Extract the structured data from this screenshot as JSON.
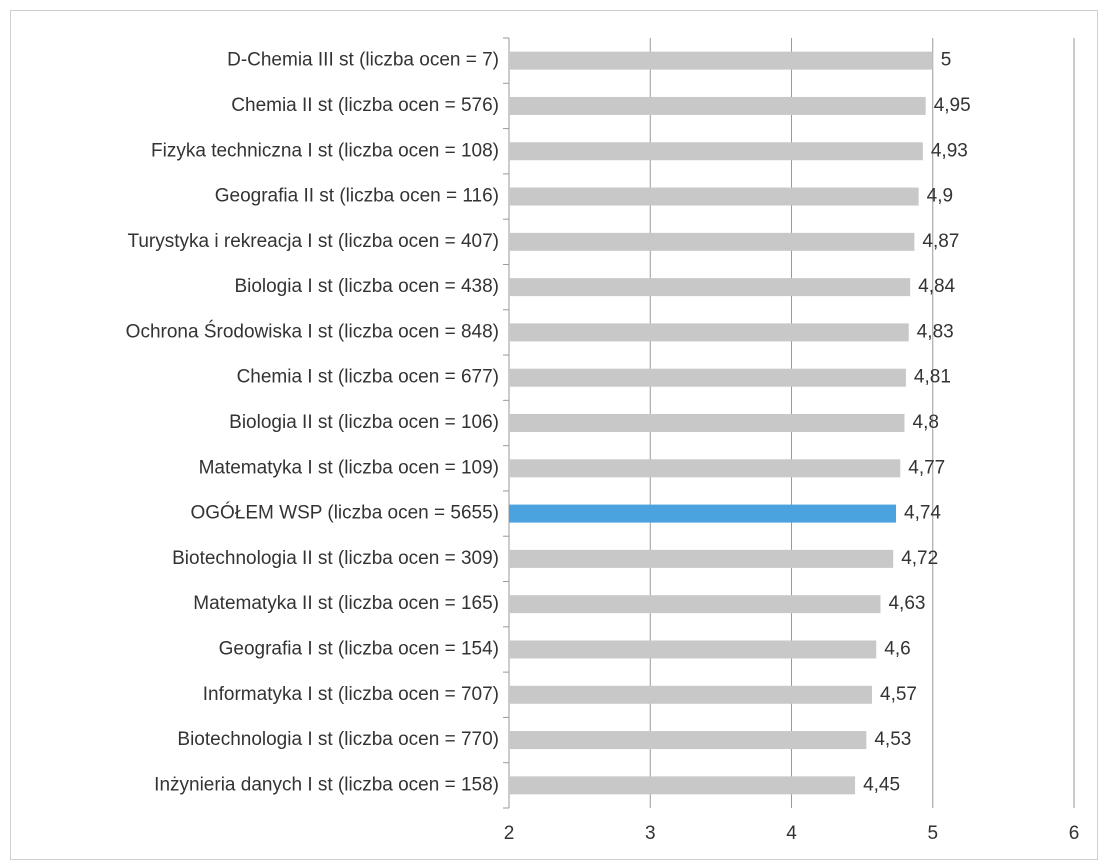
{
  "chart_data": {
    "type": "bar",
    "orientation": "horizontal",
    "categories": [
      "D-Chemia III st (liczba ocen = 7)",
      "Chemia II st (liczba ocen = 576)",
      "Fizyka techniczna I st (liczba ocen = 108)",
      "Geografia II st (liczba ocen = 116)",
      "Turystyka i rekreacja I st (liczba ocen = 407)",
      "Biologia I st (liczba ocen = 438)",
      "Ochrona Środowiska I st (liczba ocen = 848)",
      "Chemia I st (liczba ocen = 677)",
      "Biologia II st (liczba ocen = 106)",
      "Matematyka I st (liczba ocen = 109)",
      "OGÓŁEM WSP (liczba ocen = 5655)",
      "Biotechnologia II st (liczba ocen = 309)",
      "Matematyka II st (liczba ocen = 165)",
      "Geografia I st (liczba ocen = 154)",
      "Informatyka I st (liczba ocen = 707)",
      "Biotechnologia I st (liczba ocen = 770)",
      "Inżynieria danych I st (liczba ocen = 158)"
    ],
    "values": [
      5,
      4.95,
      4.93,
      4.9,
      4.87,
      4.84,
      4.83,
      4.81,
      4.8,
      4.77,
      4.74,
      4.72,
      4.63,
      4.6,
      4.57,
      4.53,
      4.45
    ],
    "value_labels": [
      "5",
      "4,95",
      "4,93",
      "4,9",
      "4,87",
      "4,84",
      "4,83",
      "4,81",
      "4,8",
      "4,77",
      "4,74",
      "4,72",
      "4,63",
      "4,6",
      "4,57",
      "4,53",
      "4,45"
    ],
    "highlight_category": "OGÓŁEM WSP (liczba ocen = 5655)",
    "xlim": [
      2,
      6
    ],
    "xticks": [
      2,
      3,
      4,
      5,
      6
    ],
    "xtick_labels": [
      "2",
      "3",
      "4",
      "5",
      "6"
    ],
    "grid": "vertical",
    "title": "",
    "xlabel": "",
    "ylabel": "",
    "colors": {
      "bar": "#c8c8c8",
      "highlight": "#4aa3df",
      "grid": "#9a9a9a",
      "axis": "#9a9a9a",
      "text": "#333333"
    }
  }
}
